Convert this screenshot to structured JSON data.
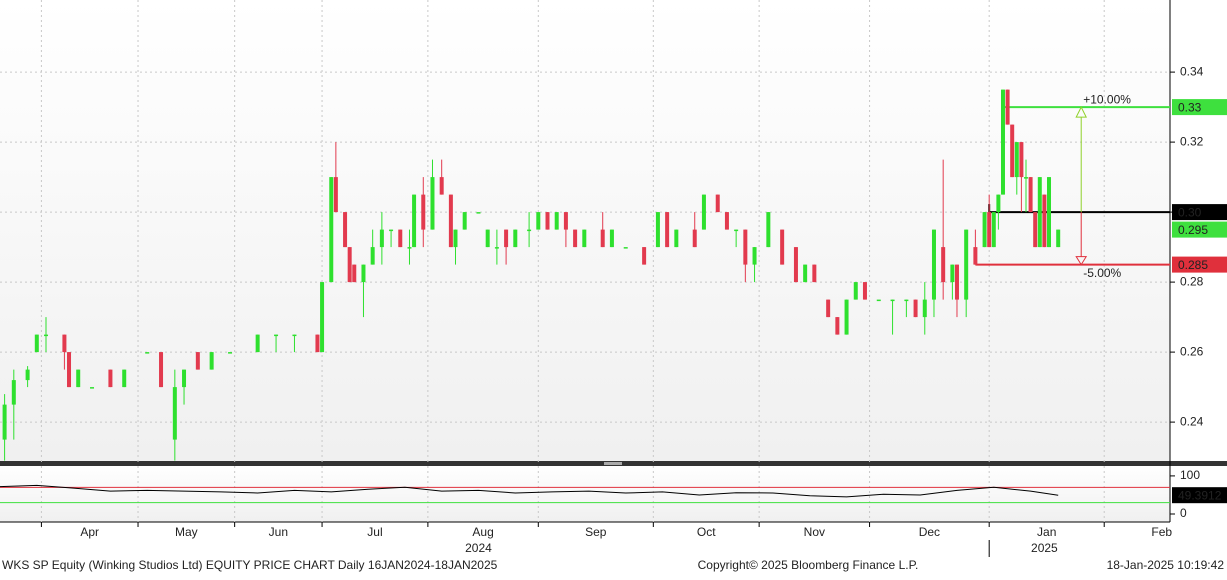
{
  "chart_data": {
    "type": "candlestick",
    "xlim": [
      0,
      254.3
    ],
    "ylim": [
      0.2286,
      0.3606
    ],
    "yticks": [
      0.24,
      0.26,
      0.28,
      0.3,
      0.32,
      0.34
    ],
    "xticks": [
      {
        "value": 9,
        "label": "Apr"
      },
      {
        "value": 30,
        "label": "May"
      },
      {
        "value": 51,
        "label": "Jun"
      },
      {
        "value": 70,
        "label": "Jul"
      },
      {
        "value": 93,
        "label": "Aug"
      },
      {
        "value": 117,
        "label": "Sep"
      },
      {
        "value": 142,
        "label": "Oct"
      },
      {
        "value": 165,
        "label": "Nov"
      },
      {
        "value": 189,
        "label": "Dec"
      },
      {
        "value": 215,
        "label": "Jan"
      },
      {
        "value": 240,
        "label": "Feb"
      }
    ],
    "year_labels": [
      {
        "value": 104,
        "label": "2024"
      },
      {
        "value": 227,
        "label": "2025"
      }
    ],
    "grid": true,
    "up_color": "#2ee02e",
    "down_color": "#e23a4e",
    "x": [
      1,
      3,
      6,
      8,
      10,
      14,
      15,
      17,
      20,
      24,
      27,
      32,
      35,
      38,
      40,
      43,
      46,
      50,
      56,
      60,
      64,
      69,
      70,
      72,
      73,
      75,
      76,
      77,
      79,
      81,
      83,
      85,
      87,
      89,
      90,
      92,
      94,
      96,
      98,
      99,
      101,
      104,
      106,
      108,
      110,
      112,
      115,
      117,
      119,
      121,
      123,
      125,
      127,
      131,
      133,
      136,
      140,
      143,
      145,
      147,
      151,
      153,
      156,
      158,
      160,
      162,
      164,
      167,
      170,
      173,
      175,
      177,
      180,
      182,
      184,
      186,
      188,
      191,
      194,
      197,
      199,
      201,
      203,
      205,
      207,
      208,
      210,
      212,
      214,
      215,
      216,
      217,
      218,
      219,
      220,
      221,
      222,
      223,
      224,
      225,
      226,
      227,
      228,
      230
    ],
    "ohlc": [
      [
        0.235,
        0.248,
        0.229,
        0.245
      ],
      [
        0.245,
        0.255,
        0.235,
        0.252
      ],
      [
        0.252,
        0.256,
        0.25,
        0.255
      ],
      [
        0.26,
        0.265,
        0.26,
        0.265
      ],
      [
        0.265,
        0.27,
        0.26,
        0.265
      ],
      [
        0.265,
        0.265,
        0.255,
        0.26
      ],
      [
        0.26,
        0.26,
        0.25,
        0.25
      ],
      [
        0.25,
        0.255,
        0.25,
        0.255
      ],
      [
        0.25,
        0.25,
        0.25,
        0.25
      ],
      [
        0.255,
        0.255,
        0.25,
        0.25
      ],
      [
        0.25,
        0.255,
        0.25,
        0.255
      ],
      [
        0.26,
        0.26,
        0.26,
        0.26
      ],
      [
        0.26,
        0.26,
        0.25,
        0.25
      ],
      [
        0.235,
        0.255,
        0.229,
        0.25
      ],
      [
        0.25,
        0.255,
        0.245,
        0.255
      ],
      [
        0.26,
        0.26,
        0.255,
        0.255
      ],
      [
        0.255,
        0.26,
        0.255,
        0.26
      ],
      [
        0.26,
        0.26,
        0.26,
        0.26
      ],
      [
        0.26,
        0.265,
        0.26,
        0.265
      ],
      [
        0.265,
        0.265,
        0.26,
        0.265
      ],
      [
        0.265,
        0.265,
        0.26,
        0.265
      ],
      [
        0.265,
        0.265,
        0.26,
        0.26
      ],
      [
        0.26,
        0.28,
        0.26,
        0.28
      ],
      [
        0.28,
        0.31,
        0.28,
        0.31
      ],
      [
        0.31,
        0.32,
        0.3,
        0.3
      ],
      [
        0.3,
        0.3,
        0.29,
        0.29
      ],
      [
        0.29,
        0.29,
        0.28,
        0.28
      ],
      [
        0.285,
        0.285,
        0.28,
        0.28
      ],
      [
        0.28,
        0.285,
        0.27,
        0.285
      ],
      [
        0.285,
        0.295,
        0.285,
        0.29
      ],
      [
        0.29,
        0.3,
        0.285,
        0.295
      ],
      [
        0.295,
        0.295,
        0.29,
        0.295
      ],
      [
        0.295,
        0.295,
        0.29,
        0.29
      ],
      [
        0.29,
        0.295,
        0.285,
        0.29
      ],
      [
        0.29,
        0.305,
        0.29,
        0.305
      ],
      [
        0.305,
        0.31,
        0.29,
        0.295
      ],
      [
        0.295,
        0.315,
        0.295,
        0.31
      ],
      [
        0.31,
        0.315,
        0.305,
        0.305
      ],
      [
        0.305,
        0.305,
        0.29,
        0.29
      ],
      [
        0.29,
        0.295,
        0.285,
        0.295
      ],
      [
        0.295,
        0.3,
        0.295,
        0.3
      ],
      [
        0.3,
        0.3,
        0.3,
        0.3
      ],
      [
        0.29,
        0.295,
        0.29,
        0.295
      ],
      [
        0.29,
        0.295,
        0.285,
        0.29
      ],
      [
        0.295,
        0.295,
        0.285,
        0.29
      ],
      [
        0.29,
        0.295,
        0.29,
        0.295
      ],
      [
        0.295,
        0.3,
        0.29,
        0.295
      ],
      [
        0.295,
        0.3,
        0.295,
        0.3
      ],
      [
        0.3,
        0.3,
        0.295,
        0.295
      ],
      [
        0.295,
        0.3,
        0.295,
        0.3
      ],
      [
        0.3,
        0.3,
        0.29,
        0.295
      ],
      [
        0.295,
        0.295,
        0.29,
        0.29
      ],
      [
        0.29,
        0.295,
        0.29,
        0.295
      ],
      [
        0.295,
        0.3,
        0.29,
        0.29
      ],
      [
        0.29,
        0.295,
        0.29,
        0.295
      ],
      [
        0.29,
        0.29,
        0.29,
        0.29
      ],
      [
        0.29,
        0.29,
        0.285,
        0.285
      ],
      [
        0.29,
        0.3,
        0.29,
        0.3
      ],
      [
        0.3,
        0.3,
        0.29,
        0.29
      ],
      [
        0.29,
        0.295,
        0.29,
        0.295
      ],
      [
        0.295,
        0.3,
        0.29,
        0.29
      ],
      [
        0.295,
        0.305,
        0.295,
        0.305
      ],
      [
        0.305,
        0.305,
        0.3,
        0.3
      ],
      [
        0.3,
        0.3,
        0.295,
        0.295
      ],
      [
        0.295,
        0.295,
        0.29,
        0.295
      ],
      [
        0.295,
        0.295,
        0.28,
        0.285
      ],
      [
        0.285,
        0.29,
        0.28,
        0.29
      ],
      [
        0.29,
        0.3,
        0.29,
        0.3
      ],
      [
        0.295,
        0.295,
        0.285,
        0.285
      ],
      [
        0.29,
        0.29,
        0.28,
        0.28
      ],
      [
        0.28,
        0.285,
        0.28,
        0.285
      ],
      [
        0.285,
        0.285,
        0.28,
        0.28
      ],
      [
        0.275,
        0.275,
        0.27,
        0.27
      ],
      [
        0.27,
        0.27,
        0.265,
        0.265
      ],
      [
        0.265,
        0.275,
        0.265,
        0.275
      ],
      [
        0.275,
        0.28,
        0.275,
        0.28
      ],
      [
        0.28,
        0.28,
        0.275,
        0.275
      ],
      [
        0.275,
        0.275,
        0.275,
        0.275
      ],
      [
        0.275,
        0.275,
        0.265,
        0.275
      ],
      [
        0.275,
        0.275,
        0.27,
        0.275
      ],
      [
        0.275,
        0.275,
        0.27,
        0.27
      ],
      [
        0.27,
        0.28,
        0.265,
        0.275
      ],
      [
        0.275,
        0.295,
        0.27,
        0.295
      ],
      [
        0.29,
        0.315,
        0.275,
        0.28
      ],
      [
        0.28,
        0.285,
        0.275,
        0.285
      ],
      [
        0.285,
        0.285,
        0.27,
        0.275
      ],
      [
        0.275,
        0.295,
        0.27,
        0.295
      ],
      [
        0.29,
        0.295,
        0.285,
        0.285
      ],
      [
        0.29,
        0.3,
        0.29,
        0.3
      ],
      [
        0.3,
        0.305,
        0.29,
        0.29
      ],
      [
        0.29,
        0.3,
        0.29,
        0.3
      ],
      [
        0.3,
        0.305,
        0.295,
        0.305
      ],
      [
        0.305,
        0.335,
        0.305,
        0.335
      ],
      [
        0.335,
        0.335,
        0.325,
        0.325
      ],
      [
        0.325,
        0.325,
        0.31,
        0.31
      ],
      [
        0.31,
        0.32,
        0.305,
        0.32
      ],
      [
        0.32,
        0.32,
        0.3,
        0.31
      ],
      [
        0.31,
        0.315,
        0.3,
        0.31
      ],
      [
        0.31,
        0.31,
        0.3,
        0.3
      ],
      [
        0.3,
        0.3,
        0.29,
        0.29
      ],
      [
        0.29,
        0.31,
        0.29,
        0.31
      ],
      [
        0.305,
        0.305,
        0.29,
        0.29
      ],
      [
        0.29,
        0.31,
        0.29,
        0.31
      ],
      [
        0.29,
        0.295,
        0.29,
        0.295
      ]
    ],
    "levels": [
      {
        "value": 0.33,
        "from_x": 218,
        "color": "#3ee03e"
      },
      {
        "value": 0.3,
        "label": "0.30",
        "from_x": 215,
        "color": "#000000"
      },
      {
        "value": 0.285,
        "from_x": 212,
        "color": "#e0303c"
      }
    ],
    "last_price": {
      "value": 0.295,
      "color": "#3ee03e"
    },
    "arrow": {
      "x": 235,
      "up_label": "+10.00%",
      "down_label": "-5.00%",
      "up_color": "#8fd12a",
      "down_color": "#e0303c"
    },
    "rsi": {
      "ylim": [
        -21,
        126
      ],
      "yticks": [
        0,
        100
      ],
      "bands": [
        {
          "value": 70,
          "color": "#e0303c"
        },
        {
          "value": 30,
          "color": "#3ee03e"
        }
      ],
      "color": "#000000",
      "x": [
        0,
        8,
        16,
        24,
        32,
        40,
        48,
        56,
        64,
        72,
        80,
        88,
        96,
        104,
        112,
        120,
        128,
        136,
        144,
        152,
        160,
        168,
        176,
        184,
        192,
        200,
        208,
        216,
        224,
        230
      ],
      "values": [
        72,
        75,
        68,
        60,
        62,
        60,
        58,
        55,
        62,
        58,
        65,
        70,
        60,
        62,
        55,
        58,
        60,
        55,
        58,
        50,
        56,
        55,
        48,
        45,
        52,
        50,
        62,
        70,
        60,
        49.3912
      ]
    },
    "footer": {
      "title": "WKS SP Equity (Winking Studios Ltd) EQUITY PRICE CHART  Daily 16JAN2024-18JAN2025",
      "copyright": "Copyright© 2025 Bloomberg Finance L.P.",
      "timestamp": "18-Jan-2025 10:19:42"
    }
  }
}
